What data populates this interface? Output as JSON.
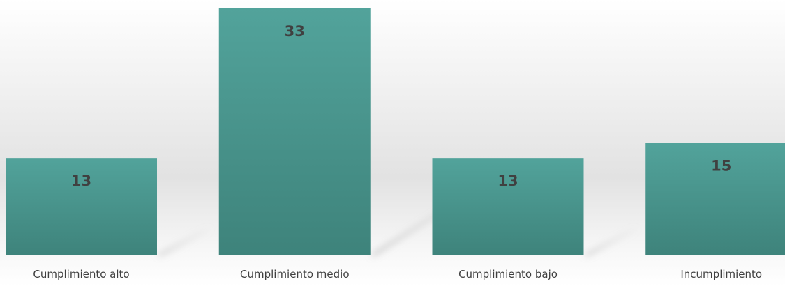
{
  "chart_data": {
    "type": "bar",
    "categories": [
      "Cumplimiento alto",
      "Cumplimiento medio",
      "Cumplimiento bajo",
      "Incumplimiento"
    ],
    "values": [
      13,
      33,
      13,
      15
    ],
    "title": "",
    "xlabel": "",
    "ylabel": "",
    "ylim": [
      0,
      33
    ],
    "grid": false,
    "legend": "none",
    "data_labels": true,
    "colors": {
      "bar_top": "#52a39b",
      "bar_bottom": "#3e837b",
      "label_text": "#404040",
      "background_top": "#ffffff",
      "background_mid": "#e3e3e3"
    }
  }
}
